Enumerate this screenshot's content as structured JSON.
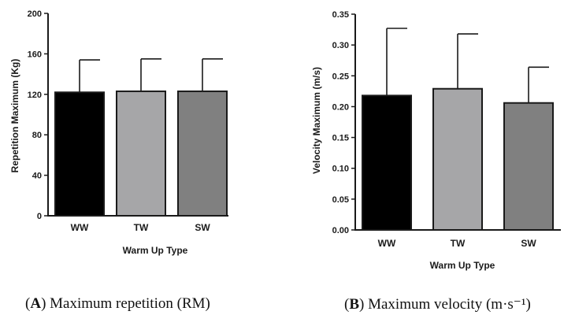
{
  "chart_data": [
    {
      "type": "bar",
      "categories": [
        "WW",
        "TW",
        "SW"
      ],
      "series": [
        {
          "values": [
            122,
            123,
            123
          ],
          "error_upper": [
            154,
            155,
            155
          ]
        }
      ],
      "bar_colors": [
        "#000000",
        "#a6a6a8",
        "#808080"
      ],
      "xlabel": "Warm Up Type",
      "ylabel": "Repetition Maximum (Kg)",
      "ylim": [
        0,
        200
      ],
      "yticks": [
        "0",
        "40",
        "80",
        "120",
        "160",
        "200"
      ],
      "caption": {
        "letter": "A",
        "text": "Maximum repetition (RM)"
      }
    },
    {
      "type": "bar",
      "categories": [
        "WW",
        "TW",
        "SW"
      ],
      "series": [
        {
          "values": [
            0.218,
            0.229,
            0.206
          ],
          "error_upper": [
            0.327,
            0.318,
            0.264
          ]
        }
      ],
      "bar_colors": [
        "#000000",
        "#a6a6a8",
        "#808080"
      ],
      "xlabel": "Warm Up Type",
      "ylabel": "Velocity Maximum (m/s)",
      "ylim": [
        0,
        0.35
      ],
      "yticks": [
        "0.00",
        "0.05",
        "0.10",
        "0.15",
        "0.20",
        "0.25",
        "0.30",
        "0.35"
      ],
      "caption": {
        "letter": "B",
        "text": "Maximum velocity (m·s⁻¹)"
      }
    }
  ]
}
